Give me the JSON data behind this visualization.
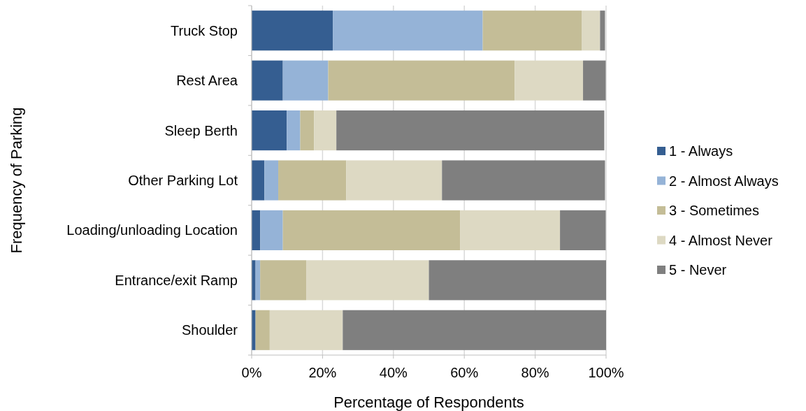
{
  "chart_data": {
    "type": "bar",
    "orientation": "horizontal",
    "stacked": true,
    "xlabel": "Percentage of Respondents",
    "ylabel": "Frequency of Parking",
    "categories": [
      "Truck Stop",
      "Rest Area",
      "Sleep Berth",
      "Other Parking Lot",
      "Loading/unloading Location",
      "Entrance/exit Ramp",
      "Shoulder"
    ],
    "series": [
      {
        "name": "1 - Always",
        "color": "#355e91",
        "values": [
          22.9,
          8.8,
          9.9,
          3.6,
          2.4,
          1.1,
          1.1
        ]
      },
      {
        "name": "2 - Almost Always",
        "color": "#95b3d7",
        "values": [
          42.3,
          12.8,
          3.8,
          3.9,
          6.4,
          1.3,
          null
        ]
      },
      {
        "name": "3 - Sometimes",
        "color": "#c4bd97",
        "values": [
          27.9,
          52.6,
          3.9,
          19.2,
          50.0,
          13.0,
          4.0
        ]
      },
      {
        "name": "4 - Almost Never",
        "color": "#ddd9c3",
        "values": [
          5.2,
          19.3,
          6.3,
          27.0,
          28.2,
          34.6,
          20.6
        ]
      },
      {
        "name": "5 - Never",
        "color": "#7f7f7f",
        "values": [
          1.4,
          6.4,
          75.6,
          46.0,
          12.9,
          50.0,
          74.3
        ]
      }
    ],
    "xlim": [
      0,
      100
    ],
    "xticks": [
      {
        "value": 0,
        "label": "0%"
      },
      {
        "value": 20,
        "label": "20%"
      },
      {
        "value": 40,
        "label": "40%"
      },
      {
        "value": 60,
        "label": "60%"
      },
      {
        "value": 80,
        "label": "80%"
      },
      {
        "value": 100,
        "label": "100%"
      }
    ],
    "grid": "x",
    "legend": "right"
  }
}
